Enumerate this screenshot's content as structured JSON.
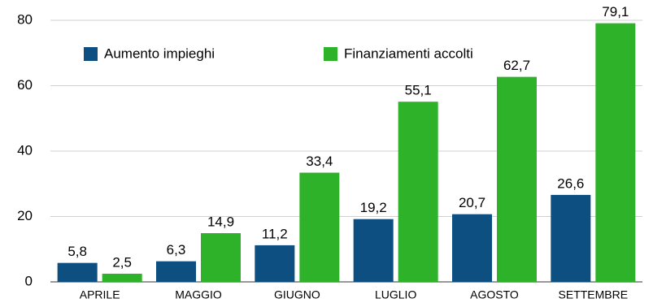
{
  "chart_data": {
    "type": "bar",
    "categories": [
      "APRILE",
      "MAGGIO",
      "GIUGNO",
      "LUGLIO",
      "AGOSTO",
      "SETTEMBRE"
    ],
    "series": [
      {
        "name": "Aumento impieghi",
        "color": "#0d4f80",
        "values": [
          5.8,
          6.3,
          11.2,
          19.2,
          20.7,
          26.6
        ],
        "value_labels": [
          "5,8",
          "6,3",
          "11,2",
          "19,2",
          "20,7",
          "26,6"
        ]
      },
      {
        "name": "Finanziamenti accolti",
        "color": "#2eb22a",
        "values": [
          2.5,
          14.9,
          33.4,
          55.1,
          62.7,
          79.1
        ],
        "value_labels": [
          "2,5",
          "14,9",
          "33,4",
          "55,1",
          "62,7",
          "79,1"
        ]
      }
    ],
    "ylim": [
      0,
      80
    ],
    "yticks": [
      0,
      20,
      40,
      60,
      80
    ],
    "grid": true,
    "legend": "top-left"
  }
}
